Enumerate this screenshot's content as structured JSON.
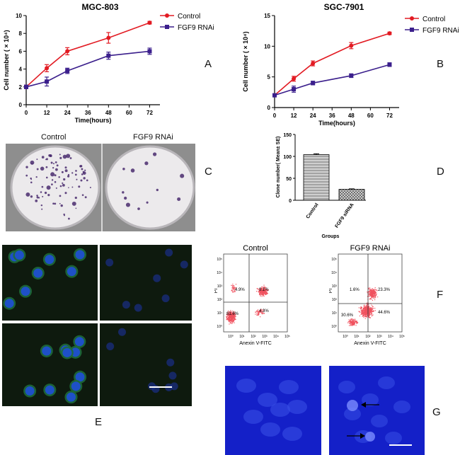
{
  "panel_letters": [
    "A",
    "B",
    "C",
    "D",
    "E",
    "F",
    "G"
  ],
  "dish_labels": {
    "left": "Control",
    "right": "FGF9 RNAi"
  },
  "flow_labels": {
    "left": "Control",
    "right": "FGF9 RNAi",
    "xlabel": "Anexin V-FITC",
    "ylabel": "PI",
    "ticks": [
      "10⁰",
      "10¹",
      "10²",
      "10³",
      "10⁴",
      "10⁵"
    ]
  },
  "colors": {
    "control": "#e21b23",
    "rnai": "#3b1f8c",
    "flow_dots": "#f0525f",
    "fluor_bg": "#0e1a0e",
    "dapi_bg": "#1420c8"
  },
  "chart_data": [
    {
      "type": "line",
      "title": "MGC-803",
      "xlabel": "Time(hours)",
      "ylabel": "Cell number ( × 10⁴)",
      "x": [
        0,
        12,
        24,
        48,
        72
      ],
      "xticks": [
        0,
        12,
        24,
        36,
        48,
        60,
        72
      ],
      "yticks": [
        0,
        2,
        4,
        6,
        8,
        10
      ],
      "xlim": [
        0,
        78
      ],
      "ylim": [
        0,
        10
      ],
      "series": [
        {
          "name": "Control",
          "values": [
            2.0,
            4.1,
            6.0,
            7.5,
            9.2
          ],
          "errors": [
            0.2,
            0.4,
            0.4,
            0.6,
            0.15
          ],
          "marker": "circle"
        },
        {
          "name": "FGF9 RNAi",
          "values": [
            2.0,
            2.6,
            3.8,
            5.5,
            6.0
          ],
          "errors": [
            0.2,
            0.5,
            0.3,
            0.4,
            0.35
          ],
          "marker": "square"
        }
      ],
      "legend": "top-right"
    },
    {
      "type": "line",
      "title": "SGC-7901",
      "xlabel": "Time(hours)",
      "ylabel": "Cell number ( × 10⁴)",
      "x": [
        0,
        12,
        24,
        48,
        72
      ],
      "xticks": [
        0,
        12,
        24,
        36,
        48,
        60,
        72
      ],
      "yticks": [
        0,
        5,
        10,
        15
      ],
      "xlim": [
        0,
        78
      ],
      "ylim": [
        0,
        15
      ],
      "series": [
        {
          "name": "Control",
          "values": [
            2.0,
            4.7,
            7.2,
            10.1,
            12.1
          ],
          "errors": [
            0.2,
            0.4,
            0.4,
            0.5,
            0.2
          ],
          "marker": "circle"
        },
        {
          "name": "FGF9 RNAi",
          "values": [
            2.0,
            3.0,
            4.0,
            5.2,
            7.0
          ],
          "errors": [
            0.2,
            0.5,
            0.3,
            0.3,
            0.3
          ],
          "marker": "square"
        }
      ],
      "legend": "top-right"
    },
    {
      "type": "bar",
      "categories": [
        "Control",
        "FGF9 siRNA"
      ],
      "values": [
        104,
        25
      ],
      "errors": [
        2,
        1
      ],
      "xlabel": "Groups",
      "ylabel": "Clone number( Mean± SE)",
      "yticks": [
        0,
        50,
        100,
        150
      ],
      "ylim": [
        0,
        150
      ]
    },
    {
      "type": "scatter",
      "title": "Control",
      "xlabel": "Anexin V-FITC",
      "ylabel": "PI",
      "quadrants": {
        "upper_left": "4.9%",
        "upper_right": "9.1%",
        "lower_left": "81.6%",
        "lower_right": "4.3%"
      }
    },
    {
      "type": "scatter",
      "title": "FGF9 RNAi",
      "xlabel": "Anexin V-FITC",
      "ylabel": "PI",
      "quadrants": {
        "upper_left": "1.6%",
        "upper_right": "23.3%",
        "lower_left": "30.6%",
        "lower_right": "44.6%"
      }
    }
  ]
}
